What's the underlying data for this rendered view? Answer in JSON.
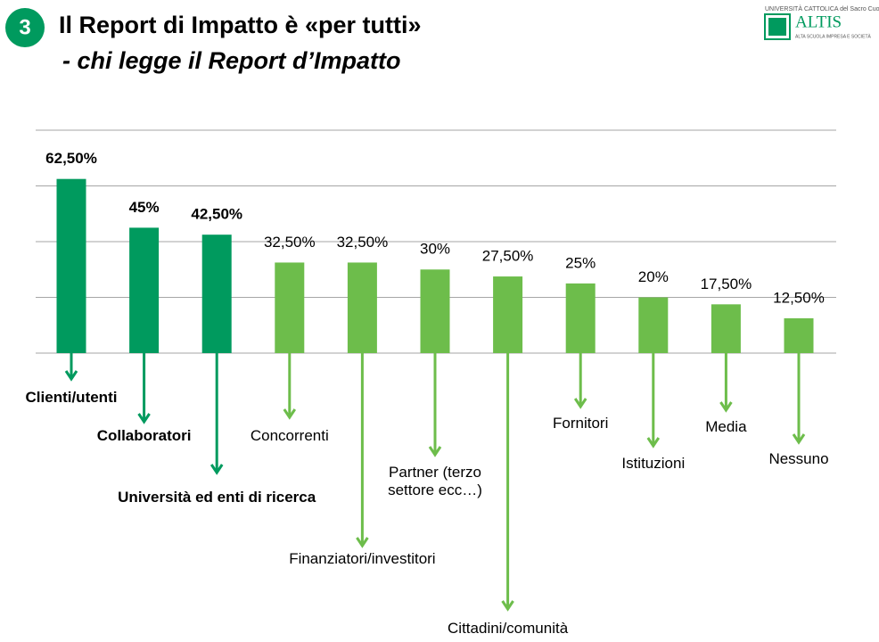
{
  "header": {
    "number": "3",
    "title": "Il Report di Impatto è «per tutti»",
    "subtitle": "- chi legge il Report d’Impatto"
  },
  "logo": {
    "university": "UNIVERSITÀ CATTOLICA del Sacro Cuore",
    "name": "ALTIS",
    "tagline": "ALTA SCUOLA IMPRESA E SOCIETÀ"
  },
  "chart_data": {
    "type": "bar",
    "categories": [
      "Clienti/utenti",
      "Collaboratori",
      "Università ed enti di ricerca",
      "Concorrenti",
      "Finanziatori/investitori",
      "Partner (terzo settore ecc…)",
      "Cittadini/comunità",
      "Fornitori",
      "Istituzioni",
      "Media",
      "Nessuno"
    ],
    "values": [
      62.5,
      45,
      42.5,
      32.5,
      32.5,
      30,
      27.5,
      25,
      20,
      17.5,
      12.5
    ],
    "value_labels": [
      "62,50%",
      "45%",
      "42,50%",
      "32,50%",
      "32,50%",
      "30%",
      "27,50%",
      "25%",
      "20%",
      "17,50%",
      "12,50%"
    ],
    "colors": [
      "#009a5e",
      "#009a5e",
      "#009a5e",
      "#6dbd4b",
      "#6dbd4b",
      "#6dbd4b",
      "#6dbd4b",
      "#6dbd4b",
      "#6dbd4b",
      "#6dbd4b",
      "#6dbd4b"
    ],
    "ylim": [
      0,
      80
    ],
    "yticks": [
      0,
      20,
      40,
      60,
      80
    ],
    "grid": true
  }
}
